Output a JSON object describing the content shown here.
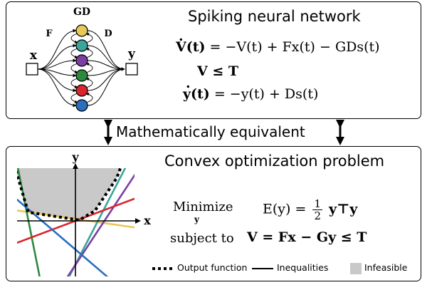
{
  "top_panel": {
    "title": "Spiking neural network",
    "labels": {
      "gd": "GD",
      "f": "F",
      "d": "D",
      "x": "x",
      "y": "y"
    },
    "neuron_colors": [
      "#e8c957",
      "#3aa59b",
      "#7b3fa3",
      "#2c8a3e",
      "#d7262e",
      "#2a6fbf"
    ],
    "eq1": {
      "lhs": "V(t)",
      "rhs": "= −V(t) + Fx(t) − GDs(t)"
    },
    "eq2": "V ≤ T",
    "eq3": {
      "lhs": "y(t)",
      "rhs": "= −y(t) + Ds(t)"
    }
  },
  "connector": {
    "label": "Mathematically equivalent"
  },
  "bottom_panel": {
    "title": "Convex optimization problem",
    "axes": {
      "x": "x",
      "y": "y"
    },
    "line_colors": [
      "#e8c957",
      "#3aa59b",
      "#7b3fa3",
      "#2c8a3e",
      "#d7262e",
      "#2a6fbf"
    ],
    "minimize_word": "Minimize",
    "minimize_sub": "y",
    "objective": {
      "lhs": "E(y) =",
      "num": "1",
      "den": "2",
      "rhs": "y⊤y"
    },
    "constraint_prefix": "subject to",
    "constraint": "V = Fx − Gy ≤ T",
    "legend": {
      "output": "Output function",
      "inequalities": "Inequalities",
      "infeasible": "Infeasible"
    }
  }
}
